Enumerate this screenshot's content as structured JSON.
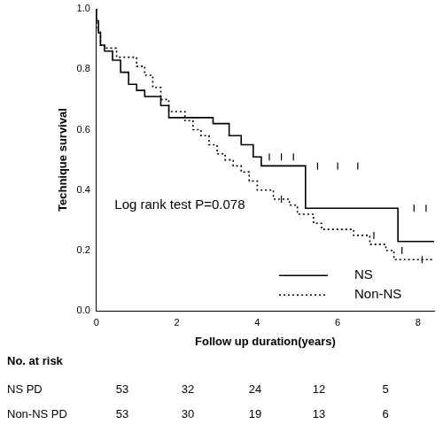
{
  "chart_data": {
    "type": "line",
    "x_label": "Follow up duration(years)",
    "y_label": "Technique survival",
    "annotation": "Log rank test P=0.078",
    "xlim": [
      0,
      8.4
    ],
    "xticks": [
      0,
      2,
      4,
      6,
      8
    ],
    "ylim": [
      0,
      1
    ],
    "yticks": [
      {
        "value": 0,
        "label": "0.0"
      },
      0.2,
      0.4,
      0.6,
      0.8,
      {
        "value": 1,
        "label": "1.0"
      }
    ],
    "grid": false,
    "legend": "lower right",
    "series": [
      {
        "name": "NS",
        "color": "#000000",
        "line_style": "solid",
        "marker": "|",
        "x": [
          0,
          0.05,
          0.1,
          0.2,
          0.4,
          0.6,
          0.8,
          1.0,
          1.2,
          1.6,
          1.8,
          2.9,
          3.3,
          3.6,
          3.9,
          4.1,
          5.2,
          7.5,
          8.3,
          8.4
        ],
        "values": [
          1,
          0.96,
          0.92,
          0.88,
          0.86,
          0.83,
          0.79,
          0.75,
          0.73,
          0.71,
          0.68,
          0.64,
          0.62,
          0.58,
          0.55,
          0.51,
          0.48,
          0.34,
          0.23,
          0.23
        ],
        "censored": [
          [
            4.3,
            0.51
          ],
          [
            4.6,
            0.51
          ],
          [
            4.9,
            0.51
          ],
          [
            5.5,
            0.48
          ],
          [
            6.0,
            0.48
          ],
          [
            6.5,
            0.48
          ],
          [
            7.9,
            0.34
          ],
          [
            8.2,
            0.34
          ]
        ]
      },
      {
        "name": "Non-NS",
        "color": "#000000",
        "line_style": "dotted",
        "marker": "|",
        "x": [
          0,
          0.1,
          0.2,
          0.5,
          1.0,
          1.2,
          1.4,
          1.6,
          1.8,
          2.2,
          2.4,
          2.6,
          2.8,
          3.0,
          3.2,
          3.4,
          3.6,
          3.8,
          4.0,
          4.4,
          4.8,
          5.0,
          5.4,
          5.6,
          6.4,
          6.8,
          7.2,
          7.4,
          7.8,
          8.4
        ],
        "values": [
          1,
          0.93,
          0.88,
          0.87,
          0.84,
          0.81,
          0.78,
          0.74,
          0.7,
          0.66,
          0.63,
          0.6,
          0.58,
          0.55,
          0.52,
          0.5,
          0.48,
          0.46,
          0.43,
          0.4,
          0.37,
          0.35,
          0.32,
          0.29,
          0.27,
          0.25,
          0.22,
          0.2,
          0.17,
          0.17
        ],
        "censored": [
          [
            4.6,
            0.37
          ],
          [
            6.9,
            0.25
          ],
          [
            7.6,
            0.2
          ],
          [
            8.1,
            0.17
          ]
        ]
      }
    ],
    "risk_table": {
      "title": "No. at risk",
      "rows": [
        {
          "label": "NS PD",
          "values": [
            53,
            32,
            24,
            12,
            5
          ]
        },
        {
          "label": "Non-NS PD",
          "values": [
            53,
            30,
            19,
            13,
            6
          ]
        }
      ]
    }
  }
}
